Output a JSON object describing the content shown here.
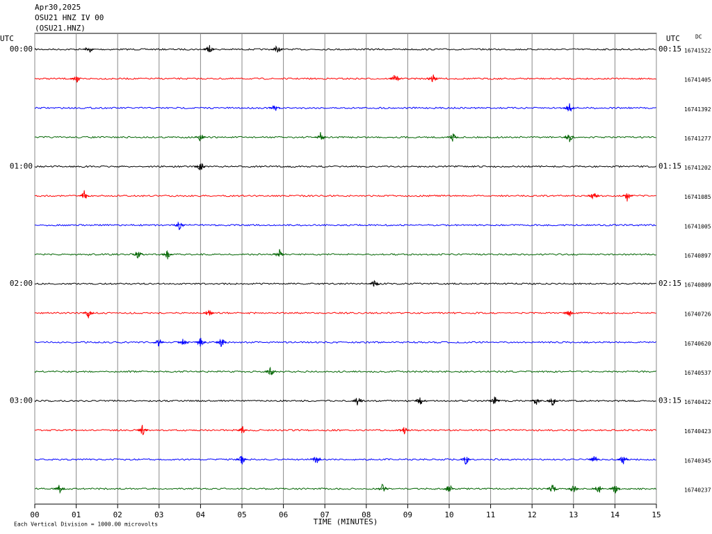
{
  "chart_data": {
    "type": "helicorder",
    "title_lines": [
      "Apr30,2025",
      "OSU21 HNZ IV 00",
      "(OSU21.HNZ)"
    ],
    "left_axis_label": "UTC",
    "right_axis_label": "UTC",
    "dc_label": "DC",
    "left_time_labels": [
      "00:00",
      "01:00",
      "02:00",
      "03:00"
    ],
    "right_time_labels": [
      "00:15",
      "01:15",
      "02:15",
      "03:15"
    ],
    "rows_per_label": 4,
    "dc_values": [
      16741522,
      16741405,
      16741392,
      16741277,
      16741202,
      16741085,
      16741005,
      16740897,
      16740809,
      16740726,
      16740620,
      16740537,
      16740422,
      16740423,
      16740345,
      16740237
    ],
    "colors": [
      "#000000",
      "#ff0000",
      "#0000ff",
      "#006400"
    ],
    "xlim": [
      0,
      15
    ],
    "xticks": [
      {
        "value": 0,
        "label": "00"
      },
      {
        "value": 1,
        "label": "01"
      },
      {
        "value": 2,
        "label": "02"
      },
      {
        "value": 3,
        "label": "03"
      },
      {
        "value": 4,
        "label": "04"
      },
      {
        "value": 5,
        "label": "05"
      },
      {
        "value": 6,
        "label": "06"
      },
      {
        "value": 7,
        "label": "07"
      },
      {
        "value": 8,
        "label": "08"
      },
      {
        "value": 9,
        "label": "09"
      },
      10,
      11,
      12,
      13,
      14,
      15
    ],
    "x_label": "TIME (MINUTES)",
    "footnote": "Each Vertical Division = 1000.00 microvolts",
    "events": [
      [
        1.3,
        4.2,
        5.85
      ],
      [
        1.0,
        8.7,
        9.6
      ],
      [
        5.8,
        12.9
      ],
      [
        4.0,
        6.9,
        10.1,
        12.9
      ],
      [
        4.0
      ],
      [
        1.2,
        13.5,
        14.3
      ],
      [
        3.5
      ],
      [
        2.5,
        3.2,
        5.9
      ],
      [
        8.2
      ],
      [
        1.3,
        4.2,
        12.9
      ],
      [
        3.0,
        3.6,
        4.0,
        4.5
      ],
      [
        5.7
      ],
      [
        7.8,
        9.3,
        11.1,
        12.1,
        12.5
      ],
      [
        2.6,
        5.0,
        8.9
      ],
      [
        5.0,
        6.8,
        10.4,
        13.5,
        14.2
      ],
      [
        0.6,
        8.4,
        10.0,
        12.5,
        13.0,
        13.6,
        14.0
      ]
    ],
    "grid": true
  }
}
